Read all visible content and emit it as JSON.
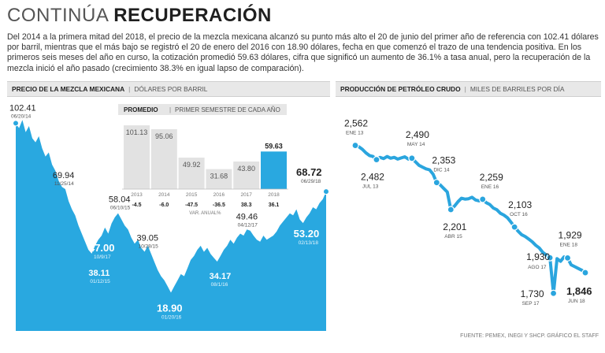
{
  "header": {
    "title_light": "CONTINÚA",
    "title_bold": "RECUPERACIÓN",
    "intro": "Del 2014 a la primera mitad del 2018, el precio de la mezcla mexicana alcanzó su punto más alto el 20 de junio del primer año de referencia con 102.41 dólares por barril, mientras que el más bajo se registró el 20 de enero del 2016 con 18.90 dólares, fecha en que comenzó el trazo de una tendencia positiva. En los primeros seis meses del año en curso, la cotización promedió 59.63 dólares, cifra que significó un aumento de 36.1% a tasa anual, pero la recuperación de la mezcla inició el año pasado (crecimiento 38.3% en igual lapso de comparación)."
  },
  "source": "FUENTE: PEMEX, INEGI Y SHCP. GRÁFICO EL STAFF",
  "colors": {
    "accent": "#29a8e0",
    "line_blue": "#2aa5de",
    "gray_bar": "#e2e2e2"
  },
  "chart_data": [
    {
      "type": "area",
      "title": "PRECIO DE LA MEZCLA MEXICANA",
      "subtitle": "DÓLARES POR BARRIL",
      "ylim": [
        0,
        115
      ],
      "labeled_points": [
        {
          "date": "06/20/14",
          "value": 102.41,
          "value_label": "102.41"
        },
        {
          "date": "11/25/14",
          "value": 69.94,
          "value_label": "69.94"
        },
        {
          "date": "01/12/15",
          "value": 38.11,
          "value_label": "38.11"
        },
        {
          "date": "06/10/15",
          "value": 58.04,
          "value_label": "58.04"
        },
        {
          "date": "10/28/15",
          "value": 39.05,
          "value_label": "39.05"
        },
        {
          "date": "01/20/16",
          "value": 18.9,
          "value_label": "18.90"
        },
        {
          "date": "08/1/16",
          "value": 34.17,
          "value_label": "34.17"
        },
        {
          "date": "04/12/17",
          "value": 49.46,
          "value_label": "49.46"
        },
        {
          "date": "10/9/17",
          "value": 47.0,
          "value_label": "47.00"
        },
        {
          "date": "02/13/18",
          "value": 53.2,
          "value_label": "53.20"
        },
        {
          "date": "06/29/18",
          "value": 68.72,
          "value_label": "68.72"
        }
      ],
      "series_values": [
        102.41,
        100,
        104,
        98,
        101,
        95,
        93,
        96,
        90,
        86,
        88,
        82,
        79,
        74,
        71,
        69.94,
        64,
        60,
        57,
        52,
        48,
        44,
        40,
        38.11,
        42,
        45,
        47,
        51,
        48,
        53,
        56,
        58.04,
        55,
        52,
        50,
        46,
        43,
        45,
        41,
        39.05,
        42,
        38,
        34,
        30,
        27,
        25,
        22,
        18.9,
        22,
        25,
        28,
        27,
        31,
        35,
        37,
        40,
        42,
        39,
        41,
        38,
        36,
        34.17,
        37,
        40,
        42,
        45,
        43,
        46,
        48,
        47,
        50,
        49.46,
        47,
        45,
        44,
        47,
        45,
        46,
        47.0,
        49,
        52,
        54,
        56,
        58,
        57,
        60,
        55,
        53.2,
        56,
        58,
        61,
        60,
        63,
        65,
        68.72
      ]
    },
    {
      "type": "bar",
      "title": "PROMEDIO",
      "subtitle": "PRIMER SEMESTRE DE CADA AÑO",
      "categories": [
        "2013",
        "2014",
        "2015",
        "2016",
        "2017",
        "2018"
      ],
      "values": [
        101.13,
        95.06,
        49.92,
        31.68,
        43.8,
        59.63
      ],
      "value_labels": [
        "101.13",
        "95.06",
        "49.92",
        "31.68",
        "43.80",
        "59.63"
      ],
      "variation_labels": [
        "-4.5",
        "-6.0",
        "-47.5",
        "-36.5",
        "38.3",
        "36.1"
      ],
      "variation_caption": "VAR. ANUAL%",
      "ylim": [
        0,
        110
      ]
    },
    {
      "type": "line",
      "title": "PRODUCCIÓN DE PETRÓLEO CRUDO",
      "subtitle": "MILES DE BARRILES POR DÍA",
      "ylim": [
        1700,
        2600
      ],
      "labeled_points": [
        {
          "date": "ENE 13",
          "value": 2562,
          "value_label": "2,562",
          "index": 0
        },
        {
          "date": "JUL 13",
          "value": 2482,
          "value_label": "2,482",
          "index": 6
        },
        {
          "date": "MAY 14",
          "value": 2490,
          "value_label": "2,490",
          "index": 16
        },
        {
          "date": "DIC 14",
          "value": 2353,
          "value_label": "2,353",
          "index": 23
        },
        {
          "date": "ABR 15",
          "value": 2201,
          "value_label": "2,201",
          "index": 27
        },
        {
          "date": "ENE 16",
          "value": 2259,
          "value_label": "2,259",
          "index": 36
        },
        {
          "date": "OCT 16",
          "value": 2103,
          "value_label": "2,103",
          "index": 45
        },
        {
          "date": "AGO 17",
          "value": 1930,
          "value_label": "1,930",
          "index": 55
        },
        {
          "date": "SEP 17",
          "value": 1730,
          "value_label": "1,730",
          "index": 56
        },
        {
          "date": "ENE 18",
          "value": 1929,
          "value_label": "1,929",
          "index": 60
        },
        {
          "date": "JUN 18",
          "value": 1846,
          "value_label": "1,846",
          "index": 65
        }
      ],
      "series_values": [
        2562,
        2555,
        2540,
        2520,
        2505,
        2500,
        2482,
        2495,
        2488,
        2500,
        2490,
        2495,
        2485,
        2492,
        2498,
        2485,
        2490,
        2470,
        2450,
        2440,
        2430,
        2425,
        2400,
        2353,
        2340,
        2320,
        2300,
        2201,
        2220,
        2245,
        2265,
        2260,
        2262,
        2270,
        2255,
        2250,
        2259,
        2240,
        2230,
        2210,
        2200,
        2180,
        2170,
        2155,
        2130,
        2103,
        2080,
        2060,
        2050,
        2035,
        2020,
        2000,
        1985,
        1960,
        1945,
        1930,
        1730,
        1925,
        1910,
        1935,
        1929,
        1890,
        1880,
        1870,
        1860,
        1846
      ]
    }
  ]
}
